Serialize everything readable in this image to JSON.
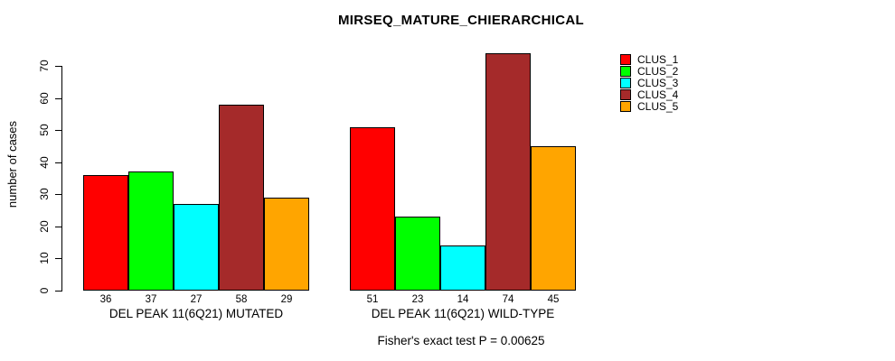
{
  "title": "MIRSEQ_MATURE_CHIERARCHICAL",
  "footer": "Fisher's exact test P = 0.00625",
  "chart_data": {
    "type": "bar",
    "title": "MIRSEQ_MATURE_CHIERARCHICAL",
    "ylabel": "number of cases",
    "xlabel": "",
    "ylim": [
      0,
      70
    ],
    "yticks": [
      0,
      10,
      20,
      30,
      40,
      50,
      60,
      70
    ],
    "grid": false,
    "bar_outline_color": "#000000",
    "background_color": "#ffffff",
    "series_colors": [
      "#FF0000",
      "#00FF00",
      "#00FFFF",
      "#A52A2A",
      "#FFA500"
    ],
    "legend": {
      "position": "top-right",
      "entries": [
        {
          "label": "CLUS_1",
          "color": "#FF0000"
        },
        {
          "label": "CLUS_2",
          "color": "#00FF00"
        },
        {
          "label": "CLUS_3",
          "color": "#00FFFF"
        },
        {
          "label": "CLUS_4",
          "color": "#A52A2A"
        },
        {
          "label": "CLUS_5",
          "color": "#FFA500"
        }
      ]
    },
    "groups": [
      {
        "label": "DEL PEAK 11(6Q21) MUTATED",
        "series": [
          "CLUS_1",
          "CLUS_2",
          "CLUS_3",
          "CLUS_4",
          "CLUS_5"
        ],
        "values": [
          36,
          37,
          27,
          58,
          29
        ]
      },
      {
        "label": "DEL PEAK 11(6Q21) WILD-TYPE",
        "series": [
          "CLUS_1",
          "CLUS_2",
          "CLUS_3",
          "CLUS_4",
          "CLUS_5"
        ],
        "values": [
          51,
          23,
          14,
          74,
          45
        ]
      }
    ],
    "annotation": "Fisher's exact test P = 0.00625"
  }
}
